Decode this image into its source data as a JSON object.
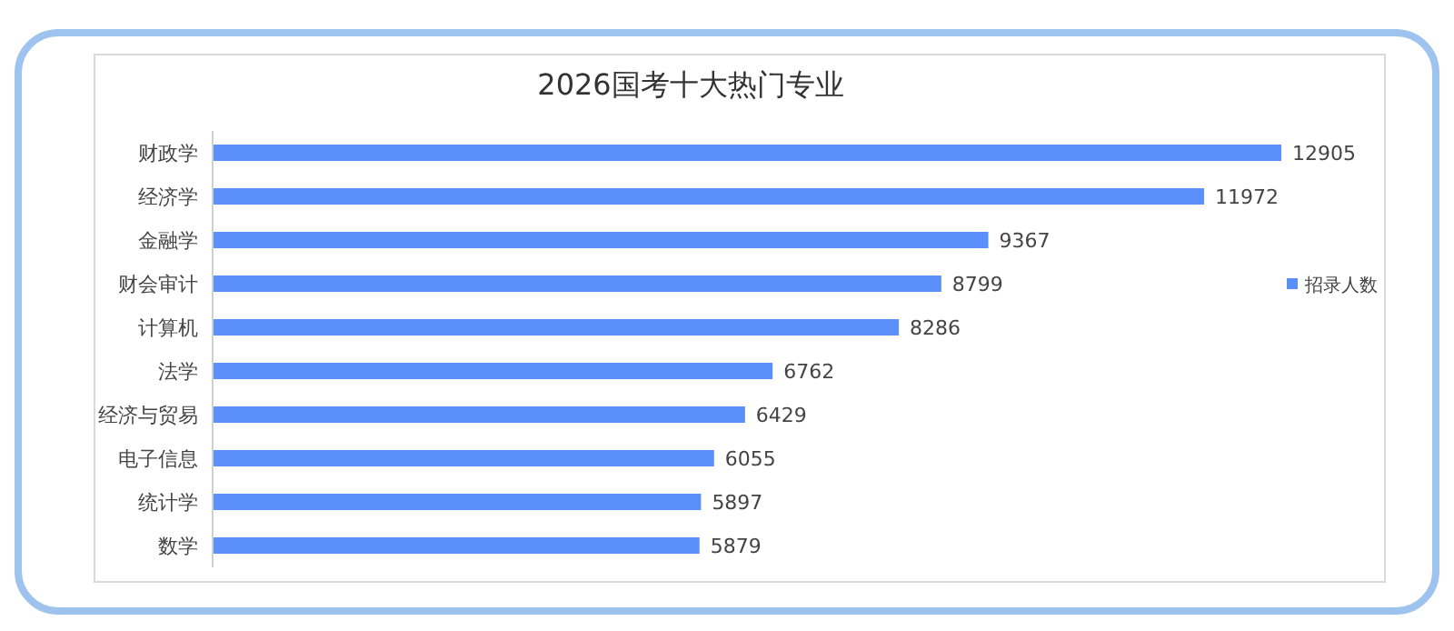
{
  "chart_data": {
    "type": "bar",
    "orientation": "horizontal",
    "title": "2026国考十大热门专业",
    "categories": [
      "财政学",
      "经济学",
      "金融学",
      "财会审计",
      "计算机",
      "法学",
      "经济与贸易",
      "电子信息",
      "统计学",
      "数学"
    ],
    "series": [
      {
        "name": "招录人数",
        "color": "#5b8ff9",
        "values": [
          12905,
          11972,
          9367,
          8799,
          8286,
          6762,
          6429,
          6055,
          5897,
          5879
        ]
      }
    ],
    "data_labels": true,
    "legend": "right"
  }
}
